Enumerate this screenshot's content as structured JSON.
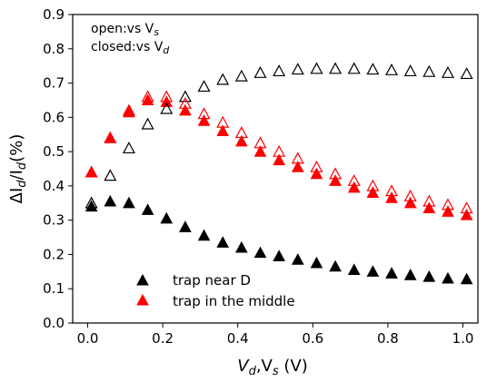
{
  "chart_data": {
    "type": "scatter",
    "xlabel_main": "V",
    "xlabel_sub1": "d",
    "xlabel_comma": ",V",
    "xlabel_sub2": "s",
    "xlabel_unit": " (V)",
    "ylabel_parts": [
      "ΔI",
      "d",
      "/I",
      "d",
      "(%)"
    ],
    "xlim": [
      -0.04,
      1.04
    ],
    "ylim": [
      0.0,
      0.9
    ],
    "xticks": [
      0.0,
      0.2,
      0.4,
      0.6,
      0.8,
      1.0
    ],
    "xtick_labels": [
      "0.0",
      "0.2",
      "0.4",
      "0.6",
      "0.8",
      "1.0"
    ],
    "yticks": [
      0.0,
      0.1,
      0.2,
      0.3,
      0.4,
      0.5,
      0.6,
      0.7,
      0.8,
      0.9
    ],
    "ytick_labels": [
      "0.0",
      "0.1",
      "0.2",
      "0.3",
      "0.4",
      "0.5",
      "0.6",
      "0.7",
      "0.8",
      "0.9"
    ],
    "grid": false,
    "legend_placement": "bottom-left",
    "annotation": {
      "line1_prefix": "open:vs V",
      "line1_sub": "s",
      "line2_prefix": "closed:vs V",
      "line2_sub": "d"
    },
    "x": [
      0.01,
      0.06,
      0.11,
      0.16,
      0.21,
      0.26,
      0.31,
      0.36,
      0.41,
      0.46,
      0.51,
      0.56,
      0.61,
      0.66,
      0.71,
      0.76,
      0.81,
      0.86,
      0.91,
      0.96,
      1.01
    ],
    "series": [
      {
        "name": "trap near D",
        "color": "#000000",
        "marker": "filled-triangle",
        "values": [
          0.34,
          0.355,
          0.35,
          0.33,
          0.305,
          0.28,
          0.255,
          0.235,
          0.22,
          0.205,
          0.195,
          0.185,
          0.175,
          0.165,
          0.155,
          0.15,
          0.145,
          0.14,
          0.135,
          0.13,
          0.128
        ]
      },
      {
        "name": "trap in the middle",
        "color": "#ff0000",
        "marker": "filled-triangle",
        "values": [
          0.44,
          0.54,
          0.615,
          0.65,
          0.645,
          0.62,
          0.59,
          0.56,
          0.53,
          0.5,
          0.475,
          0.455,
          0.435,
          0.415,
          0.395,
          0.38,
          0.365,
          0.35,
          0.335,
          0.325,
          0.315
        ]
      },
      {
        "color": "#000000",
        "marker": "open-triangle",
        "values": [
          0.35,
          0.43,
          0.51,
          0.58,
          0.625,
          0.66,
          0.69,
          0.71,
          0.72,
          0.73,
          0.735,
          0.74,
          0.742,
          0.742,
          0.742,
          0.74,
          0.738,
          0.735,
          0.733,
          0.73,
          0.727
        ]
      },
      {
        "color": "#ff0000",
        "marker": "open-triangle",
        "values": [
          0.44,
          0.54,
          0.62,
          0.66,
          0.66,
          0.64,
          0.61,
          0.585,
          0.555,
          0.525,
          0.5,
          0.48,
          0.455,
          0.435,
          0.415,
          0.4,
          0.385,
          0.37,
          0.355,
          0.345,
          0.335
        ]
      }
    ]
  }
}
